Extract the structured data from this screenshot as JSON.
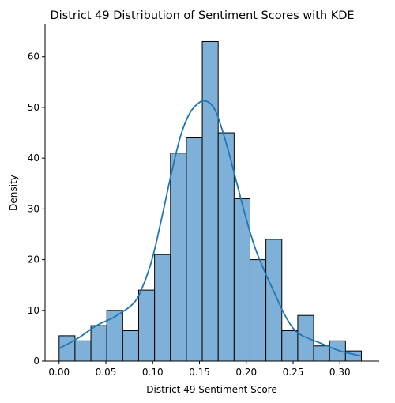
{
  "chart_data": {
    "type": "bar",
    "title": "District 49 Distribution of Sentiment Scores with KDE",
    "xlabel": "District 49 Sentiment Score",
    "ylabel": "Density",
    "xlim": [
      -0.015,
      0.342
    ],
    "ylim": [
      0,
      66.5
    ],
    "xticks": [
      0.0,
      0.05,
      0.1,
      0.15,
      0.2,
      0.25,
      0.3
    ],
    "xtick_labels": [
      "0.00",
      "0.05",
      "0.10",
      "0.15",
      "0.20",
      "0.25",
      "0.30"
    ],
    "yticks": [
      0,
      10,
      20,
      30,
      40,
      50,
      60
    ],
    "ytick_labels": [
      "0",
      "10",
      "20",
      "30",
      "40",
      "50",
      "60"
    ],
    "bin_edges": [
      0.0,
      0.017,
      0.034,
      0.051,
      0.068,
      0.085,
      0.102,
      0.119,
      0.136,
      0.153,
      0.17,
      0.187,
      0.204,
      0.221,
      0.238,
      0.255,
      0.272,
      0.289,
      0.306,
      0.323
    ],
    "counts": [
      5,
      4,
      7,
      10,
      6,
      14,
      21,
      41,
      44,
      63,
      45,
      32,
      20,
      24,
      6,
      9,
      3,
      4,
      2
    ],
    "kde": {
      "x": [
        0.0,
        0.02,
        0.04,
        0.06,
        0.08,
        0.09,
        0.1,
        0.11,
        0.12,
        0.13,
        0.14,
        0.15,
        0.155,
        0.16,
        0.165,
        0.17,
        0.18,
        0.19,
        0.2,
        0.21,
        0.22,
        0.23,
        0.24,
        0.25,
        0.26,
        0.28,
        0.3,
        0.323
      ],
      "y": [
        2.5,
        4.5,
        7.0,
        8.8,
        11.5,
        15.0,
        20.5,
        28.5,
        37.0,
        44.5,
        49.0,
        51.0,
        51.3,
        51.0,
        50.0,
        48.0,
        42.0,
        35.0,
        28.0,
        22.0,
        17.5,
        13.5,
        9.5,
        6.5,
        5.0,
        3.5,
        2.0,
        1.0
      ]
    },
    "colors": {
      "bar_fill": "#7fb0d7",
      "bar_edge": "#000000",
      "kde_line": "#1f77b4"
    },
    "grid": false,
    "legend": "none"
  }
}
